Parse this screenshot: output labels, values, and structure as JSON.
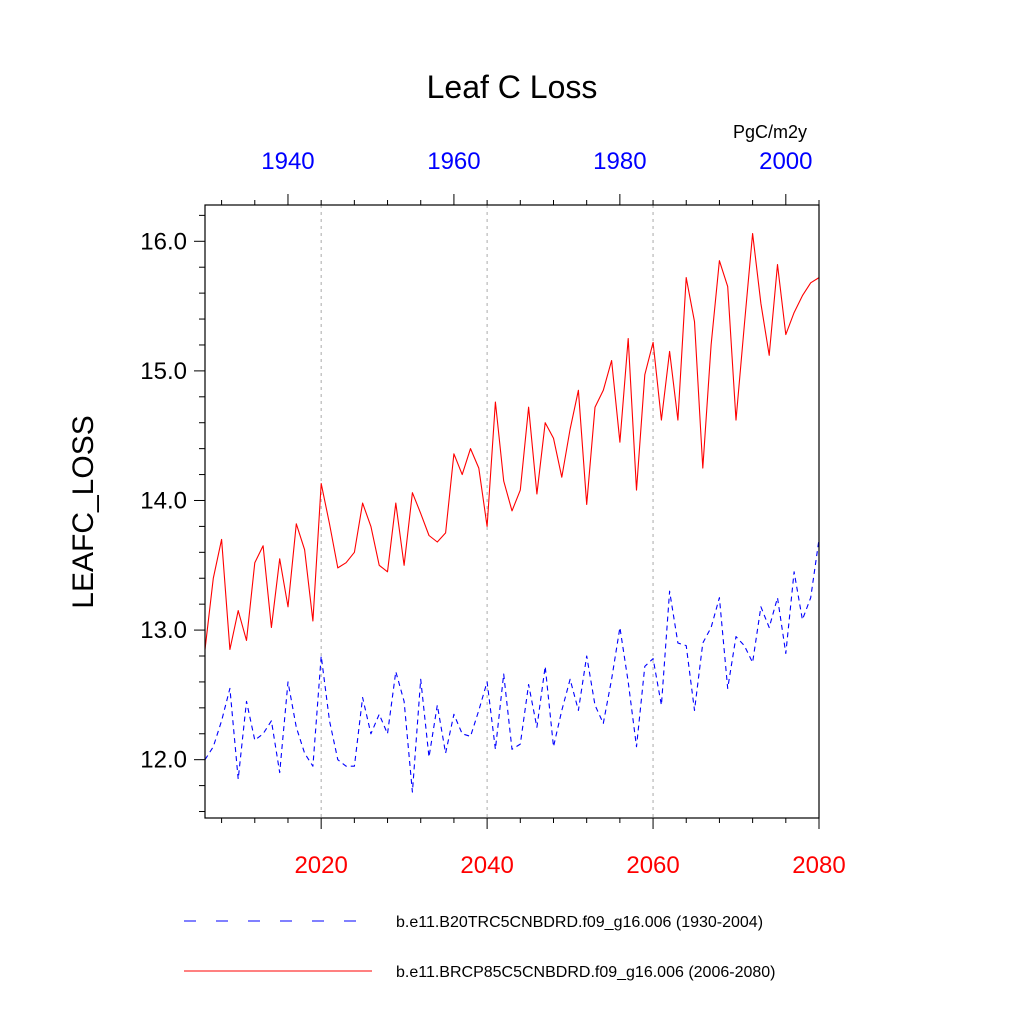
{
  "chart_data": {
    "type": "line",
    "title": "Leaf C Loss",
    "ylabel": "LEAFC_LOSS",
    "units": "PgC/m2y",
    "ylim": [
      11.55,
      16.28
    ],
    "yticks": [
      12.0,
      13.0,
      14.0,
      15.0,
      16.0
    ],
    "ytick_labels": [
      "12.0",
      "13.0",
      "14.0",
      "15.0",
      "16.0"
    ],
    "bottom_axis": {
      "range": [
        2006,
        2080
      ],
      "ticks": [
        2020,
        2040,
        2060,
        2080
      ],
      "tick_labels": [
        "2020",
        "2040",
        "2060",
        "2080"
      ],
      "color": "#ff0000"
    },
    "top_axis": {
      "range": [
        1930,
        2004
      ],
      "ticks": [
        1940,
        1960,
        1980,
        2000
      ],
      "tick_labels": [
        "1940",
        "1960",
        "1980",
        "2000"
      ],
      "color": "#0000ff"
    },
    "grid": "vertical-dotted",
    "series": [
      {
        "name": "b.e11.B20TRC5CNBDRD.f09_g16.006 (1930-2004)",
        "color": "#0000ff",
        "dash": "dashed",
        "axis": "top",
        "x_start": 1930,
        "values": [
          12.0,
          12.1,
          12.3,
          12.55,
          11.85,
          12.45,
          12.15,
          12.2,
          12.3,
          11.9,
          12.6,
          12.25,
          12.05,
          11.95,
          12.8,
          12.3,
          12.0,
          11.95,
          11.95,
          12.48,
          12.2,
          12.35,
          12.2,
          12.68,
          12.45,
          11.75,
          12.62,
          12.02,
          12.42,
          12.05,
          12.35,
          12.2,
          12.18,
          12.38,
          12.6,
          12.08,
          12.66,
          12.08,
          12.12,
          12.58,
          12.25,
          12.72,
          12.1,
          12.38,
          12.62,
          12.38,
          12.8,
          12.42,
          12.28,
          12.62,
          13.02,
          12.6,
          12.1,
          12.72,
          12.78,
          12.42,
          13.3,
          12.9,
          12.88,
          12.38,
          12.9,
          13.02,
          13.25,
          12.55,
          12.95,
          12.88,
          12.75,
          13.18,
          13.02,
          13.25,
          12.82,
          13.45,
          13.08,
          13.25,
          13.7
        ]
      },
      {
        "name": "b.e11.BRCP85C5CNBDRD.f09_g16.006 (2006-2080)",
        "color": "#ff0000",
        "dash": "solid",
        "axis": "bottom",
        "x_start": 2006,
        "values": [
          12.85,
          13.4,
          13.7,
          12.85,
          13.15,
          12.92,
          13.52,
          13.65,
          13.02,
          13.55,
          13.18,
          13.82,
          13.62,
          13.07,
          14.13,
          13.82,
          13.48,
          13.52,
          13.6,
          13.98,
          13.8,
          13.5,
          13.45,
          13.98,
          13.5,
          14.06,
          13.9,
          13.73,
          13.68,
          13.75,
          14.36,
          14.2,
          14.4,
          14.25,
          13.8,
          14.76,
          14.15,
          13.92,
          14.08,
          14.72,
          14.05,
          14.6,
          14.48,
          14.18,
          14.55,
          14.85,
          13.97,
          14.72,
          14.85,
          15.08,
          14.45,
          15.25,
          14.08,
          14.97,
          15.22,
          14.62,
          15.15,
          14.62,
          15.72,
          15.38,
          14.25,
          15.2,
          15.85,
          15.65,
          14.62,
          15.35,
          16.06,
          15.52,
          15.12,
          15.82,
          15.28,
          15.45,
          15.58,
          15.68,
          15.72
        ]
      }
    ],
    "legend": {
      "placement": "bottom",
      "entries": [
        "b.e11.B20TRC5CNBDRD.f09_g16.006 (1930-2004)",
        "b.e11.BRCP85C5CNBDRD.f09_g16.006 (2006-2080)"
      ]
    }
  }
}
